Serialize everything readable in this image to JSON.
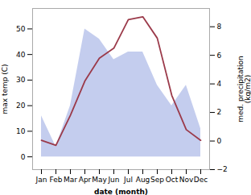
{
  "chart_data": {
    "type": "combo",
    "xlabel": "date (month)",
    "ylabel": "max temp (C)",
    "y2label": "med. precipitation\n(kg/m2)",
    "categories": [
      "Jan",
      "Feb",
      "Mar",
      "Apr",
      "May",
      "Jun",
      "Jul",
      "Aug",
      "Sep",
      "Oct",
      "Nov",
      "Dec"
    ],
    "series": [
      {
        "type": "area",
        "color": "#b0bce8",
        "values": [
          16,
          4,
          20,
          50,
          46,
          38,
          41,
          41,
          28,
          20,
          28,
          11
        ]
      },
      {
        "type": "line",
        "axis": "y2",
        "color": "#9b3a4a",
        "values": [
          0.05,
          -0.3,
          1.8,
          4.2,
          5.8,
          6.5,
          8.5,
          8.7,
          7.2,
          3.2,
          0.8,
          0.05
        ]
      }
    ],
    "ylim": [
      -5,
      58
    ],
    "yticks": [
      0,
      10,
      20,
      30,
      40,
      50
    ],
    "y2lim": [
      -2,
      9.28
    ],
    "y2ticks": [
      -2,
      0,
      2,
      4,
      6,
      8
    ],
    "grid": false
  }
}
